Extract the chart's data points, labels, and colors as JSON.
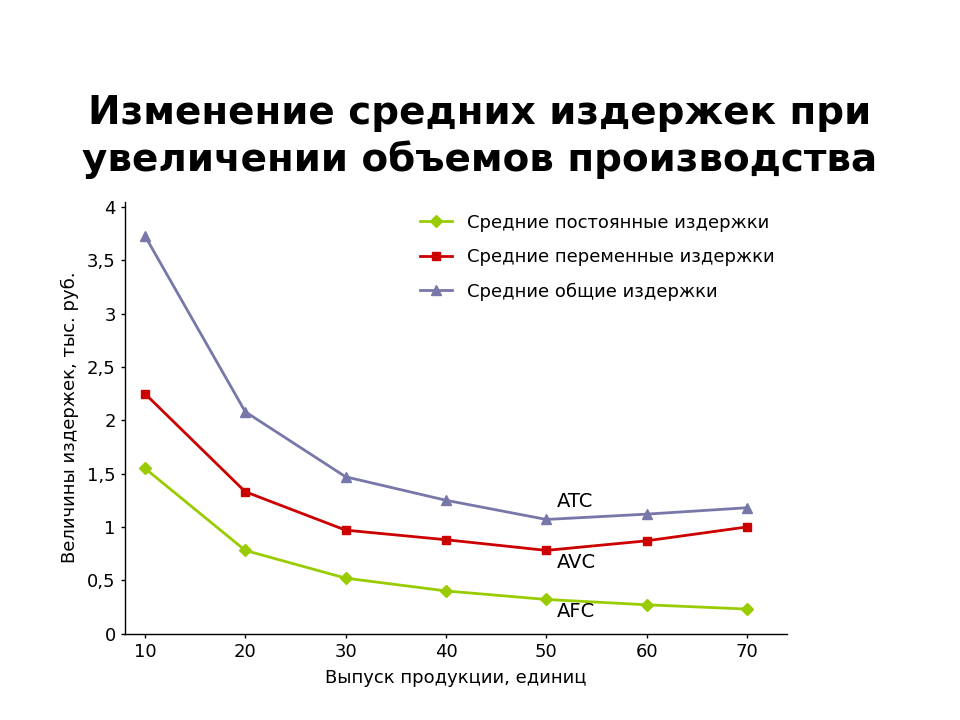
{
  "title": "Изменение средних издержек при\nувеличении объемов производства",
  "xlabel": "Выпуск продукции, единиц",
  "ylabel": "Величины издержек, тыс. руб.",
  "x": [
    10,
    20,
    30,
    40,
    50,
    60,
    70
  ],
  "afc": [
    1.55,
    0.78,
    0.52,
    0.4,
    0.32,
    0.27,
    0.23
  ],
  "avc": [
    2.25,
    1.33,
    0.97,
    0.88,
    0.78,
    0.87,
    1.0
  ],
  "atc": [
    3.73,
    2.08,
    1.47,
    1.25,
    1.07,
    1.12,
    1.18
  ],
  "afc_color": "#99cc00",
  "avc_color": "#cc0000",
  "atc_color": "#7777aa",
  "afc_label": "Средние постоянные издержки",
  "avc_label": "Средние переменные издержки",
  "atc_label": "Средние общие издержки",
  "afc_tag": "AFC",
  "avc_tag": "AVC",
  "atc_tag": "ATC",
  "ylim": [
    0,
    4.05
  ],
  "yticks": [
    0,
    0.5,
    1,
    1.5,
    2,
    2.5,
    3,
    3.5,
    4
  ],
  "ytick_labels": [
    "0",
    "0,5",
    "1",
    "1,5",
    "2",
    "2,5",
    "3",
    "3,5",
    "4"
  ],
  "background_color": "#ffffff",
  "title_fontsize": 28,
  "label_fontsize": 13,
  "tick_fontsize": 13,
  "legend_fontsize": 13,
  "tag_fontsize": 14
}
